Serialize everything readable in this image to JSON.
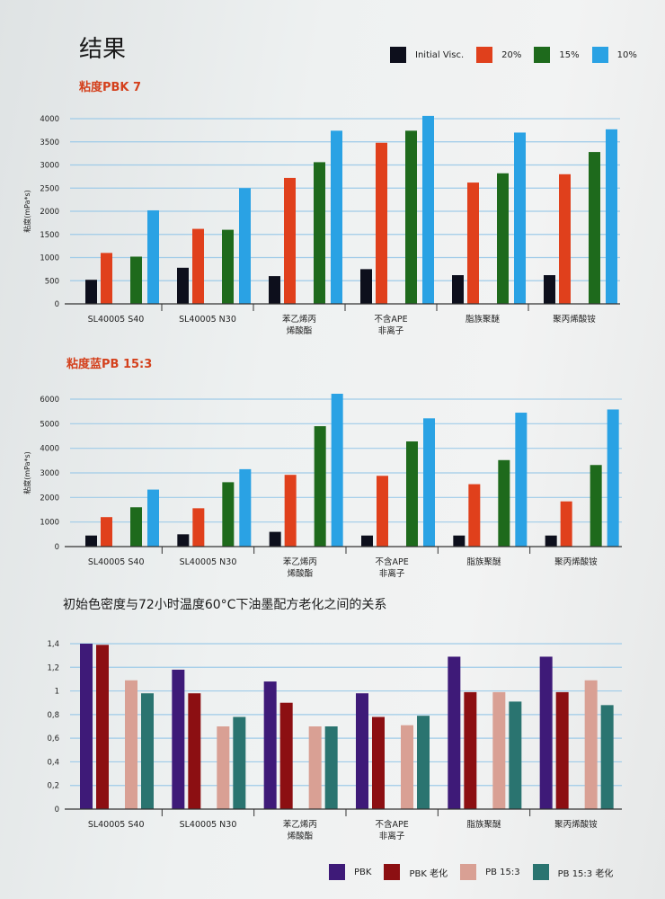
{
  "page_title": "结果",
  "chart_data": [
    {
      "type": "bar",
      "title": "粘度PBK 7",
      "ylabel": "粘度(mPa*s)",
      "ylim": [
        0,
        4000
      ],
      "yticks": [
        "0",
        "500",
        "1000",
        "1500",
        "2000",
        "2500",
        "3000",
        "3500",
        "4000"
      ],
      "ytick_values": [
        0,
        500,
        1000,
        1500,
        2000,
        2500,
        3000,
        3500,
        4000
      ],
      "grid": true,
      "legend_position": "top-right",
      "categories": [
        [
          "SL40005  S40"
        ],
        [
          "SL40005  N30"
        ],
        [
          "苯乙烯丙",
          "烯酸酯"
        ],
        [
          "不含APE",
          "非离子"
        ],
        [
          "脂族聚醚"
        ],
        [
          "聚丙烯酸铵"
        ]
      ],
      "series": [
        {
          "name": "Initial Visc.",
          "color": "#0d0f1c",
          "values": [
            520,
            780,
            600,
            750,
            620,
            620
          ]
        },
        {
          "name": "20%",
          "color": "#e0401c",
          "values": [
            1100,
            1620,
            2720,
            3480,
            2620,
            2800
          ]
        },
        {
          "name": "15%",
          "color": "#1e6a1c",
          "values": [
            1020,
            1600,
            3060,
            3740,
            2820,
            3280
          ]
        },
        {
          "name": "10%",
          "color": "#2aa2e4",
          "values": [
            2020,
            2500,
            3740,
            4060,
            3700,
            3770
          ]
        }
      ]
    },
    {
      "type": "bar",
      "title": "粘度蓝PB 15:3",
      "ylabel": "粘度(mPa*s)",
      "ylim": [
        0,
        6000
      ],
      "yticks": [
        "0",
        "1000",
        "2000",
        "3000",
        "4000",
        "5000",
        "6000"
      ],
      "ytick_values": [
        0,
        1000,
        2000,
        3000,
        4000,
        5000,
        6000
      ],
      "grid": true,
      "categories": [
        [
          "SL40005  S40"
        ],
        [
          "SL40005  N30"
        ],
        [
          "苯乙烯丙",
          "烯酸酯"
        ],
        [
          "不含APE",
          "非离子"
        ],
        [
          "脂族聚醚"
        ],
        [
          "聚丙烯酸铵"
        ]
      ],
      "series": [
        {
          "name": "Initial Visc.",
          "color": "#0d0f1c",
          "values": [
            450,
            500,
            600,
            450,
            450,
            450
          ]
        },
        {
          "name": "20%",
          "color": "#e0401c",
          "values": [
            1200,
            1560,
            2920,
            2880,
            2540,
            1840
          ]
        },
        {
          "name": "15%",
          "color": "#1e6a1c",
          "values": [
            1600,
            2620,
            4900,
            4280,
            3520,
            3320
          ]
        },
        {
          "name": "10%",
          "color": "#2aa2e4",
          "values": [
            2320,
            3150,
            6220,
            5220,
            5450,
            5580
          ]
        }
      ]
    },
    {
      "type": "bar",
      "title": "初始色密度与72小时温度60°C下油墨配方老化之间的关系",
      "ylabel": "",
      "ylim": [
        0,
        1.4
      ],
      "yticks": [
        "0",
        "0,2",
        "0,4",
        "0,6",
        "0,8",
        "1",
        "1,2",
        "1,4"
      ],
      "ytick_values": [
        0,
        0.2,
        0.4,
        0.6,
        0.8,
        1.0,
        1.2,
        1.4
      ],
      "grid": true,
      "legend_position": "bottom-right",
      "categories": [
        [
          "SL40005  S40"
        ],
        [
          "SL40005  N30"
        ],
        [
          "苯乙烯丙",
          "烯酸酯"
        ],
        [
          "不含APE",
          "非离子"
        ],
        [
          "脂族聚醚"
        ],
        [
          "聚丙烯酸铵"
        ]
      ],
      "series": [
        {
          "name": "PBK",
          "color": "#3e1a78",
          "values": [
            1.4,
            1.18,
            1.08,
            0.98,
            1.29,
            1.29
          ]
        },
        {
          "name": "PBK 老化",
          "color": "#8c0f12",
          "values": [
            1.39,
            0.98,
            0.9,
            0.78,
            0.99,
            0.99
          ]
        },
        {
          "name": "PB 15:3",
          "color": "#d9a094",
          "values": [
            1.09,
            0.7,
            0.7,
            0.71,
            0.99,
            1.09
          ]
        },
        {
          "name": "PB 15:3 老化",
          "color": "#2a7470",
          "values": [
            0.98,
            0.78,
            0.7,
            0.79,
            0.91,
            0.88
          ]
        }
      ]
    }
  ]
}
